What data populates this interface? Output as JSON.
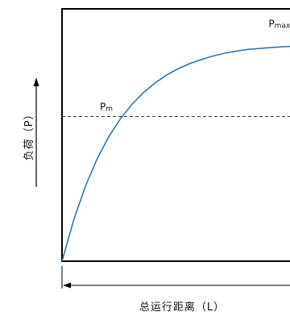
{
  "chart_data": {
    "type": "line",
    "title": "",
    "xlabel": "总运行距离（L）",
    "ylabel": "负荷（P）",
    "xlim": [
      0,
      1
    ],
    "ylim": [
      0,
      1
    ],
    "grid": false,
    "legend": "none",
    "series": [
      {
        "color": "#1f6fb2",
        "x": [
          0,
          0.05,
          0.1,
          0.15,
          0.2,
          0.25,
          0.3,
          0.35,
          0.4,
          0.45,
          0.5,
          0.55,
          0.6,
          0.65,
          0.7,
          0.75,
          0.8,
          0.85,
          0.9,
          0.95,
          1.0
        ],
        "y": [
          0,
          0.194,
          0.352,
          0.48,
          0.585,
          0.669,
          0.738,
          0.794,
          0.839,
          0.876,
          0.906,
          0.93,
          0.949,
          0.965,
          0.978,
          0.988,
          0.996,
          1.0,
          1.004,
          1.008,
          1.01
        ]
      }
    ],
    "reference_line": {
      "label": "Pm",
      "y": 0.68,
      "style": "dashed"
    },
    "annotations": [
      {
        "text": "Pm",
        "x": 0.3,
        "y": 0.68
      },
      {
        "text": "Pmax",
        "x": 0.96,
        "y": 1.01
      }
    ],
    "axis_arrows": {
      "y": "up",
      "x": "left"
    },
    "colors": {
      "curve": "#1f6fb2",
      "frame": "#000000",
      "dashed": "#333333"
    }
  }
}
